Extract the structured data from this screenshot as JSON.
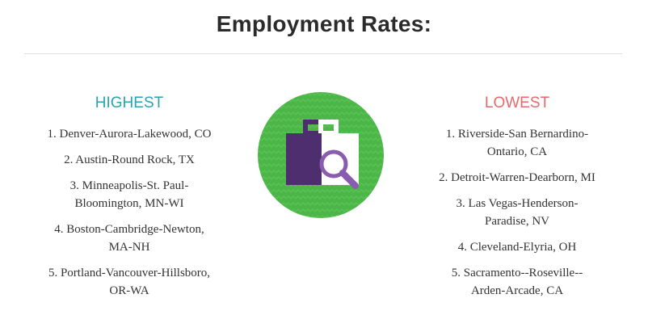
{
  "title": "Employment Rates:",
  "highest": {
    "heading": "HIGHEST",
    "items": [
      [
        "1. Denver-Aurora-Lakewood, CO"
      ],
      [
        "2. Austin-Round Rock, TX"
      ],
      [
        "3. Minneapolis-St. Paul-",
        "Bloomington, MN-WI"
      ],
      [
        "4. Boston-Cambridge-Newton,",
        "MA-NH"
      ],
      [
        "5. Portland-Vancouver-Hillsboro,",
        "OR-WA"
      ]
    ]
  },
  "lowest": {
    "heading": "LOWEST",
    "items": [
      [
        "1. Riverside-San Bernardino-",
        "Ontario, CA"
      ],
      [
        "2. Detroit-Warren-Dearborn, MI"
      ],
      [
        "3. Las Vegas-Henderson-",
        "Paradise, NV"
      ],
      [
        "4. Cleveland-Elyria, OH"
      ],
      [
        "5. Sacramento--Roseville--",
        "Arden-Arcade, CA"
      ]
    ]
  }
}
